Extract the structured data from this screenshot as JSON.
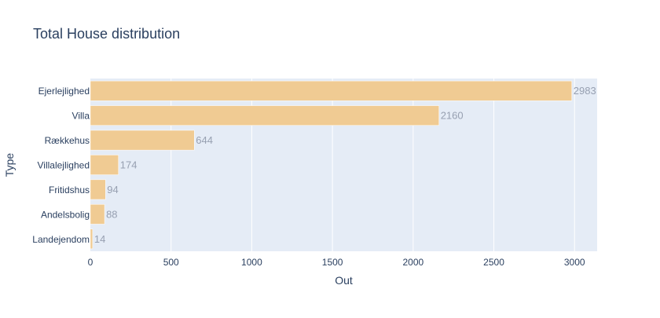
{
  "chart_data": {
    "type": "bar",
    "orientation": "horizontal",
    "title": "Total House distribution",
    "xlabel": "Out",
    "ylabel": "Type",
    "categories": [
      "Ejerlejlighed",
      "Villa",
      "Rækkehus",
      "Villalejlighed",
      "Fritidshus",
      "Andelsbolig",
      "Landejendom"
    ],
    "values": [
      2983,
      2160,
      644,
      174,
      94,
      88,
      14
    ],
    "data_labels": [
      "2983",
      "2160",
      "644",
      "174",
      "94",
      "88",
      "14"
    ],
    "xlim": [
      0,
      3140
    ],
    "xticks": [
      0,
      500,
      1000,
      1500,
      2000,
      2500,
      3000
    ],
    "xtick_labels": [
      "0",
      "500",
      "1000",
      "1500",
      "2000",
      "2500",
      "3000"
    ],
    "grid": true,
    "colors": {
      "bar": "#f0cb93",
      "plot_background": "#e5ecf6",
      "gridline": "#ffffff",
      "text": "#2a3f5f",
      "data_label": "#97a0b1"
    }
  }
}
